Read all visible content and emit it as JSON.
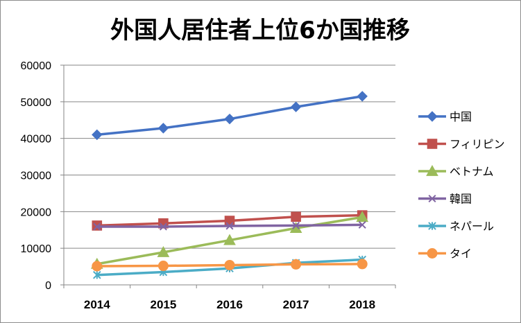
{
  "chart_data": {
    "type": "line",
    "title": "外国人居住者上位6か国推移",
    "xlabel": "",
    "ylabel": "",
    "categories": [
      "2014",
      "2015",
      "2016",
      "2017",
      "2018"
    ],
    "ylim": [
      0,
      60000
    ],
    "yticks": [
      "0",
      "10000",
      "20000",
      "30000",
      "40000",
      "50000",
      "60000"
    ],
    "grid": true,
    "legend_position": "right",
    "series": [
      {
        "name": "中国",
        "values": [
          41000,
          42800,
          45300,
          48600,
          51500
        ],
        "color": "#4472c4",
        "marker": "diamond"
      },
      {
        "name": "フィリピン",
        "values": [
          16200,
          16800,
          17500,
          18600,
          19000
        ],
        "color": "#c0504d",
        "marker": "square"
      },
      {
        "name": "ベトナム",
        "values": [
          5700,
          8900,
          12200,
          15500,
          18500
        ],
        "color": "#9bbb59",
        "marker": "triangle"
      },
      {
        "name": "韓国",
        "values": [
          15900,
          15900,
          16100,
          16200,
          16400
        ],
        "color": "#8064a2",
        "marker": "x"
      },
      {
        "name": "ネパール",
        "values": [
          2700,
          3500,
          4500,
          6000,
          6900
        ],
        "color": "#4bacc6",
        "marker": "star"
      },
      {
        "name": "タイ",
        "values": [
          5100,
          5200,
          5400,
          5600,
          5700
        ],
        "color": "#f79646",
        "marker": "circle"
      }
    ]
  }
}
